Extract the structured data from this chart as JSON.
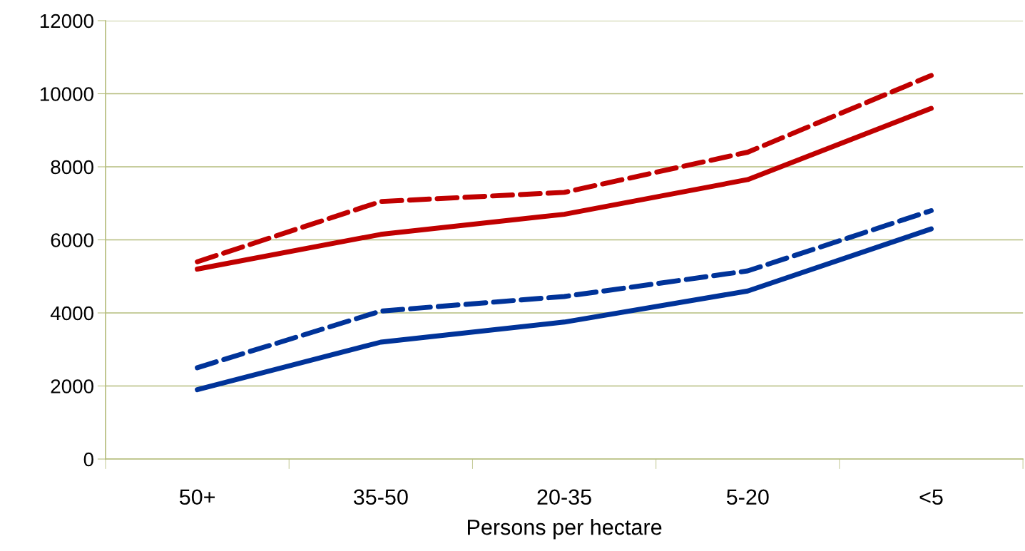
{
  "chart_data": {
    "type": "line",
    "xlabel": "Persons per hectare",
    "categories": [
      "50+",
      "35-50",
      "20-35",
      "5-20",
      "<5"
    ],
    "series": [
      {
        "color": "#c00000",
        "line_style": "dashed",
        "values": [
          5400,
          7050,
          7300,
          8400,
          10500
        ]
      },
      {
        "color": "#c00000",
        "line_style": "solid",
        "values": [
          5200,
          6150,
          6700,
          7650,
          9600
        ]
      },
      {
        "color": "#003399",
        "line_style": "dashed",
        "values": [
          2500,
          4050,
          4450,
          5150,
          6800
        ]
      },
      {
        "color": "#003399",
        "line_style": "solid",
        "values": [
          1900,
          3200,
          3750,
          4600,
          6300
        ]
      }
    ],
    "ylim": [
      0,
      12000
    ],
    "yticks": [
      0,
      2000,
      4000,
      6000,
      8000,
      10000,
      12000
    ],
    "grid": "y",
    "marker": "none"
  }
}
